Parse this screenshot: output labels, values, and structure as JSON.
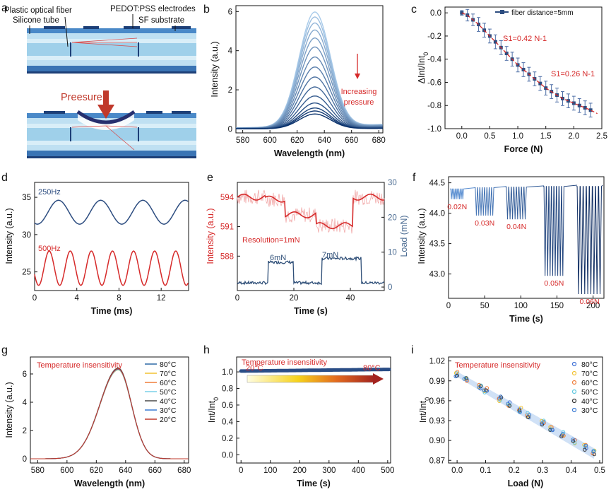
{
  "figure": {
    "panel_letters": [
      "a",
      "b",
      "c",
      "d",
      "e",
      "f",
      "g",
      "h",
      "i"
    ],
    "colors": {
      "red": "#d62a2a",
      "navy": "#2d4d80",
      "blue_dark": "#08306b",
      "blue_mid": "#2f6fb5",
      "blue_light": "#a9cbea"
    }
  },
  "chart_data": [
    {
      "panel": "a",
      "type": "diagram",
      "labels": {
        "fiber": "Plastic optical fiber",
        "tube": "Silicone tube",
        "electrodes": "PEDOT:PSS electrodes",
        "substrate": "SF substrate",
        "pressure": "Preesure"
      }
    },
    {
      "panel": "b",
      "type": "line",
      "title": "",
      "xlabel": "Wavelength (nm)",
      "ylabel": "Intensity (a.u.)",
      "xlim": [
        575,
        683
      ],
      "ylim": [
        -0.2,
        6.3
      ],
      "xticks": [
        580,
        600,
        620,
        640,
        660,
        680
      ],
      "yticks": [
        0,
        2,
        4,
        6
      ],
      "peak_center": 633,
      "peak_width": 11.5,
      "peaks": [
        5.85,
        5.6,
        5.3,
        4.95,
        4.55,
        4.1,
        3.6,
        3.1,
        2.6,
        2.1,
        1.65,
        1.3,
        1.05,
        0.9,
        0.75
      ],
      "annotation": [
        "Increasing",
        "pressure"
      ]
    },
    {
      "panel": "c",
      "type": "scatter",
      "xlabel": "Force (N)",
      "ylabel": "ΔInt/Int0",
      "xlim": [
        -0.3,
        2.5
      ],
      "ylim": [
        -1.0,
        0.05
      ],
      "xticks": [
        0.0,
        0.5,
        1.0,
        1.5,
        2.0,
        2.5
      ],
      "yticks": [
        0.0,
        -0.2,
        -0.4,
        -0.6,
        -0.8,
        -1.0
      ],
      "legend": "fiber distance=5mm",
      "slopes": [
        "S1=0.42 N-1",
        "S1=0.26 N-1"
      ],
      "x": [
        0,
        0.1,
        0.2,
        0.3,
        0.4,
        0.5,
        0.6,
        0.7,
        0.8,
        0.9,
        1.0,
        1.1,
        1.2,
        1.3,
        1.4,
        1.5,
        1.6,
        1.7,
        1.8,
        1.9,
        2.0,
        2.1,
        2.2,
        2.3
      ],
      "y": [
        0,
        -0.02,
        -0.06,
        -0.1,
        -0.15,
        -0.2,
        -0.25,
        -0.3,
        -0.35,
        -0.4,
        -0.45,
        -0.49,
        -0.53,
        -0.57,
        -0.61,
        -0.65,
        -0.68,
        -0.71,
        -0.74,
        -0.76,
        -0.78,
        -0.8,
        -0.82,
        -0.84
      ],
      "err": [
        0.02,
        0.05,
        0.05,
        0.06,
        0.06,
        0.06,
        0.06,
        0.06,
        0.06,
        0.06,
        0.06,
        0.06,
        0.06,
        0.06,
        0.06,
        0.06,
        0.06,
        0.06,
        0.06,
        0.06,
        0.06,
        0.06,
        0.06,
        0.06
      ]
    },
    {
      "panel": "d",
      "type": "line",
      "xlabel": "Time (ms)",
      "ylabel": "Intensity (a.u.)",
      "xlim": [
        0,
        14.6
      ],
      "ylim": [
        22.5,
        37
      ],
      "xticks": [
        0,
        4,
        8,
        12
      ],
      "yticks": [
        25,
        30,
        35
      ],
      "series": [
        {
          "name": "250Hz",
          "offset": 33,
          "amp": 1.6,
          "period_ms": 4
        },
        {
          "name": "500Hz",
          "offset": 25.5,
          "amp": 2.3,
          "period_ms": 2
        }
      ]
    },
    {
      "panel": "e",
      "type": "line",
      "xlabel": "Time (s)",
      "ylabel": "Intensity (a.u.)",
      "y2label": "Load (mN)",
      "xlim": [
        0,
        52
      ],
      "ylim": [
        584.5,
        595.5
      ],
      "y2lim": [
        -1,
        30
      ],
      "xticks": [
        0,
        20,
        40
      ],
      "yticks": [
        588,
        591,
        594
      ],
      "y2ticks": [
        0,
        10,
        20,
        30
      ],
      "annotations": [
        "Resolution=1mN",
        "6mN",
        "7mN"
      ],
      "intensity_levels": [
        [
          0,
          10,
          594
        ],
        [
          10,
          17,
          593.8
        ],
        [
          17,
          28,
          592.2
        ],
        [
          28,
          41,
          591.1
        ],
        [
          41,
          52,
          594
        ]
      ],
      "load_levels": [
        [
          0,
          11,
          1.2
        ],
        [
          11,
          20,
          7.1
        ],
        [
          20,
          30,
          1.2
        ],
        [
          30,
          44,
          8.2
        ],
        [
          44,
          52,
          1.2
        ]
      ]
    },
    {
      "panel": "f",
      "type": "line",
      "xlabel": "Time (s)",
      "ylabel": "Intensity (a.u.)",
      "xlim": [
        0,
        215
      ],
      "ylim": [
        42.6,
        44.6
      ],
      "xticks": [
        0,
        50,
        100,
        150,
        200
      ],
      "yticks": [
        43.0,
        43.5,
        44.0,
        44.5
      ],
      "bursts": [
        {
          "label": "0.02N",
          "t0": 3,
          "t1": 21,
          "base": 44.4,
          "min": 44.23
        },
        {
          "label": "0.03N",
          "t0": 37,
          "t1": 63,
          "base": 44.42,
          "min": 43.96
        },
        {
          "label": "0.04N",
          "t0": 80,
          "t1": 108,
          "base": 44.43,
          "min": 43.9
        },
        {
          "label": "0.05N",
          "t0": 132,
          "t1": 160,
          "base": 44.44,
          "min": 42.97
        },
        {
          "label": "0.06N",
          "t0": 178,
          "t1": 212,
          "base": 44.44,
          "min": 42.67
        }
      ]
    },
    {
      "panel": "g",
      "type": "line",
      "xlabel": "Wavelength (nm)",
      "ylabel": "Intensity (a.u.)",
      "xlim": [
        575,
        683
      ],
      "ylim": [
        -0.3,
        7.2
      ],
      "xticks": [
        580,
        600,
        620,
        640,
        660,
        680
      ],
      "yticks": [
        0,
        2,
        4,
        6
      ],
      "annotation": "Temperature insensitivity",
      "series": [
        {
          "name": "80°C",
          "color": "#2e6aa6",
          "peak": 6.32
        },
        {
          "name": "70°C",
          "color": "#f2c232",
          "peak": 6.28
        },
        {
          "name": "60°C",
          "color": "#ef7e3c",
          "peak": 6.38
        },
        {
          "name": "50°C",
          "color": "#7ad0e8",
          "peak": 6.3
        },
        {
          "name": "40°C",
          "color": "#4a4a4a",
          "peak": 6.42
        },
        {
          "name": "30°C",
          "color": "#3b7bd4",
          "peak": 6.34
        },
        {
          "name": "20°C",
          "color": "#c0392b",
          "peak": 6.36
        }
      ]
    },
    {
      "panel": "h",
      "type": "line",
      "xlabel": "Time (s)",
      "ylabel": "Int/Int0",
      "xlim": [
        -15,
        510
      ],
      "ylim": [
        -0.1,
        1.18
      ],
      "xticks": [
        0,
        100,
        200,
        300,
        400,
        500
      ],
      "yticks": [
        0.0,
        0.2,
        0.4,
        0.6,
        0.8,
        1.0
      ],
      "annotation": "Temperature insensitivity",
      "range_labels": [
        "20°C",
        "80°C"
      ],
      "baseline": 1.0
    },
    {
      "panel": "i",
      "type": "scatter",
      "xlabel": "Load (N)",
      "ylabel": "Int/Int0",
      "xlim": [
        -0.03,
        0.51
      ],
      "ylim": [
        0.866,
        1.026
      ],
      "xticks": [
        0.0,
        0.1,
        0.2,
        0.3,
        0.4,
        0.5
      ],
      "yticks": [
        1.02,
        0.99,
        0.96,
        0.93,
        0.9,
        0.87
      ],
      "annotation": "Temperature insensitivity",
      "fit": {
        "intercept": 1.0,
        "slope": -0.245
      },
      "x": [
        0.0,
        0.03,
        0.08,
        0.1,
        0.15,
        0.18,
        0.22,
        0.25,
        0.3,
        0.33,
        0.37,
        0.41,
        0.45,
        0.48
      ],
      "series": [
        {
          "name": "80°C",
          "color": "#3d6fd6"
        },
        {
          "name": "70°C",
          "color": "#f2c232"
        },
        {
          "name": "60°C",
          "color": "#ef7e3c"
        },
        {
          "name": "50°C",
          "color": "#5fc8e0"
        },
        {
          "name": "40°C",
          "color": "#333333"
        },
        {
          "name": "30°C",
          "color": "#3b7bd4"
        }
      ]
    }
  ]
}
